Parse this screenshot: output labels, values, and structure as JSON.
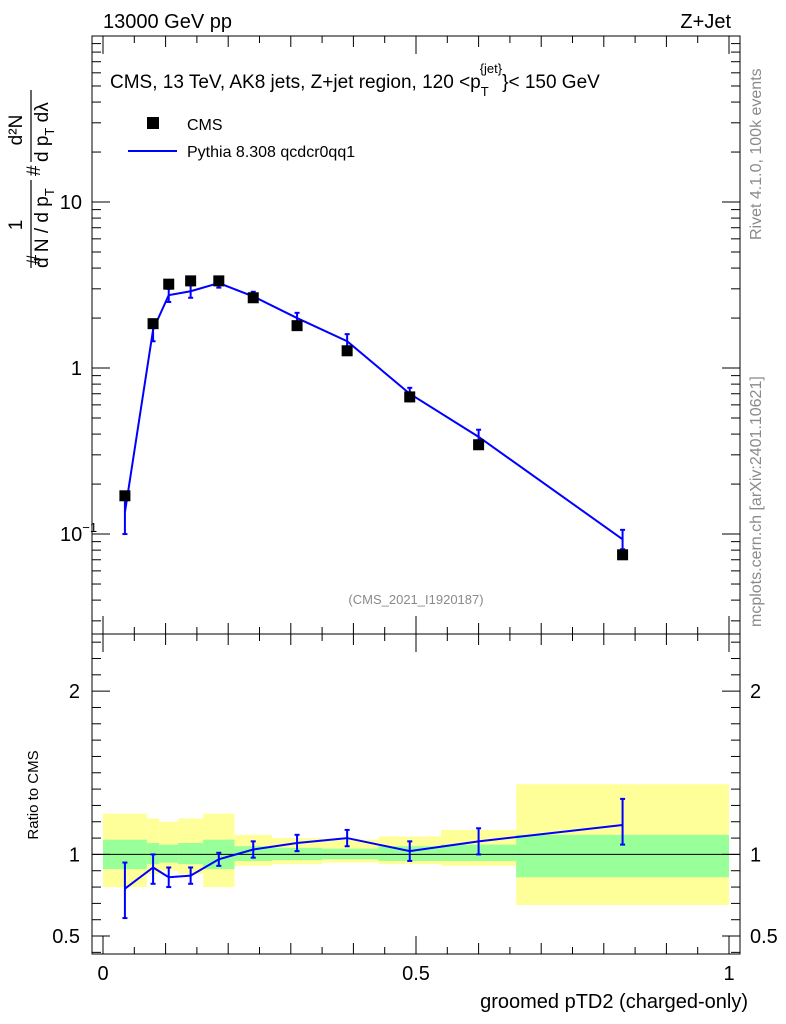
{
  "header": {
    "energy_label": "13000 GeV pp",
    "process_label": "Z+Jet"
  },
  "side_labels": {
    "rivet": "Rivet 4.1.0,  100k events",
    "mcplots": "mcplots.cern.ch [arXiv:2401.10621]"
  },
  "chart_data": [
    {
      "type": "scatter",
      "panel": "main",
      "title": "CMS, 13 TeV, AK8 jets, Z+jet region, 120 <p_T^{jet}< 150 GeV",
      "title_parts": {
        "main": "CMS, 13 TeV, AK8 jets, Z+jet region, 120 <p",
        "sub": "T",
        "sup": "{jet}",
        "tail": "}< 150 GeV"
      },
      "ylabel": "1/(dN/dpT) d²N/(dpT dλ)",
      "ylabel_parts": {
        "num": "1",
        "den": "d N / d p",
        "den_sub": "T",
        "lead": "#",
        "hash": "#",
        "num2": "d²N",
        "den2": "d p",
        "den2_sub": "T",
        "den2_tail": " dλ"
      },
      "yscale": "log",
      "ylim": [
        0.025,
        100
      ],
      "xlim": [
        0,
        1
      ],
      "y_ticks": [
        {
          "value": 0.1,
          "label": "10",
          "sup": "−1"
        },
        {
          "value": 1,
          "label": "1",
          "sup": ""
        },
        {
          "value": 10,
          "label": "10",
          "sup": ""
        }
      ],
      "legend": {
        "position": "top-left",
        "entries": [
          "CMS",
          "Pythia 8.308 qcdcr0qq1"
        ]
      },
      "annotation": "(CMS_2021_I1920187)",
      "series": [
        {
          "name": "CMS",
          "x": [
            0.035,
            0.08,
            0.105,
            0.14,
            0.185,
            0.24,
            0.31,
            0.39,
            0.49,
            0.6,
            0.83
          ],
          "values": [
            0.17,
            1.85,
            3.2,
            3.35,
            3.35,
            2.65,
            1.8,
            1.27,
            0.67,
            0.345,
            0.075
          ]
        },
        {
          "name": "Pythia 8.308 qcdcr0qq1",
          "color": "#0000ff",
          "x": [
            0.035,
            0.08,
            0.105,
            0.14,
            0.185,
            0.24,
            0.31,
            0.39,
            0.49,
            0.6,
            0.83
          ],
          "values": [
            0.135,
            1.7,
            2.75,
            2.9,
            3.25,
            2.7,
            2.0,
            1.45,
            0.7,
            0.385,
            0.093
          ],
          "err_low": [
            0.1,
            1.45,
            2.5,
            2.65,
            3.05,
            2.55,
            1.85,
            1.35,
            0.63,
            0.345,
            0.081
          ],
          "err_high": [
            0.165,
            1.95,
            3.0,
            3.15,
            3.45,
            2.88,
            2.15,
            1.6,
            0.76,
            0.425,
            0.106
          ]
        }
      ]
    },
    {
      "type": "line",
      "panel": "ratio",
      "xlabel": "groomed pTD2 (charged-only)",
      "ylabel": "Ratio to CMS",
      "ylim": [
        0.39,
        2.35
      ],
      "xlim": [
        0,
        1
      ],
      "x_ticks": [
        {
          "value": 0,
          "label": "0"
        },
        {
          "value": 0.5,
          "label": "0.5"
        },
        {
          "value": 1,
          "label": "1"
        }
      ],
      "y_ticks": [
        {
          "value": 0.5,
          "label": "0.5"
        },
        {
          "value": 1,
          "label": "1"
        },
        {
          "value": 2,
          "label": "2"
        }
      ],
      "bands": {
        "x_edges": [
          0,
          0.07,
          0.09,
          0.12,
          0.16,
          0.21,
          0.27,
          0.35,
          0.44,
          0.54,
          0.66,
          1.0
        ],
        "yellow_low": [
          0.8,
          0.88,
          0.9,
          0.88,
          0.8,
          0.93,
          0.94,
          0.95,
          0.94,
          0.93,
          0.69
        ],
        "yellow_high": [
          1.25,
          1.22,
          1.2,
          1.22,
          1.25,
          1.12,
          1.1,
          1.09,
          1.11,
          1.15,
          1.43
        ],
        "green_low": [
          0.91,
          0.94,
          0.95,
          0.94,
          0.91,
          0.96,
          0.965,
          0.97,
          0.96,
          0.96,
          0.86
        ],
        "green_high": [
          1.09,
          1.07,
          1.06,
          1.07,
          1.09,
          1.05,
          1.04,
          1.035,
          1.05,
          1.06,
          1.12
        ]
      },
      "series": [
        {
          "name": "Pythia 8.308 qcdcr0qq1 / CMS",
          "color": "#0000ff",
          "x": [
            0.035,
            0.08,
            0.105,
            0.14,
            0.185,
            0.24,
            0.31,
            0.39,
            0.49,
            0.6,
            0.83
          ],
          "values": [
            0.79,
            0.92,
            0.86,
            0.87,
            0.97,
            1.03,
            1.07,
            1.1,
            1.02,
            1.08,
            1.18
          ],
          "err_low": [
            0.61,
            0.82,
            0.8,
            0.82,
            0.93,
            0.98,
            1.02,
            1.05,
            0.96,
            1.0,
            1.06
          ],
          "err_high": [
            0.95,
            1.0,
            0.92,
            0.92,
            1.01,
            1.08,
            1.12,
            1.15,
            1.08,
            1.16,
            1.34
          ]
        }
      ]
    }
  ]
}
